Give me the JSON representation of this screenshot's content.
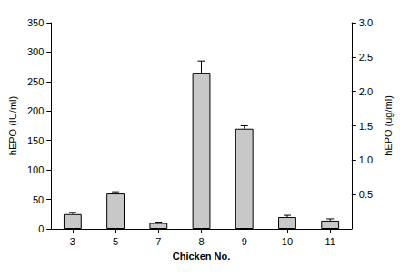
{
  "chart_data": {
    "type": "bar",
    "x_label": "Chicken No.",
    "y_label": "hEPO (IU/ml)",
    "y2_label": "hEPO (ug/ml)",
    "categories": [
      "3",
      "5",
      "7",
      "8",
      "9",
      "10",
      "11"
    ],
    "values": [
      25,
      60,
      10,
      265,
      170,
      20,
      14
    ],
    "errors": [
      3,
      3,
      1.5,
      20,
      5,
      3,
      3
    ],
    "color": "#c8c8c8",
    "ylim": [
      0,
      350
    ],
    "yticks": [
      0,
      50,
      100,
      150,
      200,
      250,
      300,
      350
    ],
    "y2lim": [
      0,
      3.0
    ],
    "y2ticks": [
      0.5,
      {
        "value": 1,
        "label": "1.0"
      },
      1.5,
      {
        "value": 2,
        "label": "2.0"
      },
      2.5,
      {
        "value": 3,
        "label": "3.0"
      }
    ],
    "grid": false
  }
}
